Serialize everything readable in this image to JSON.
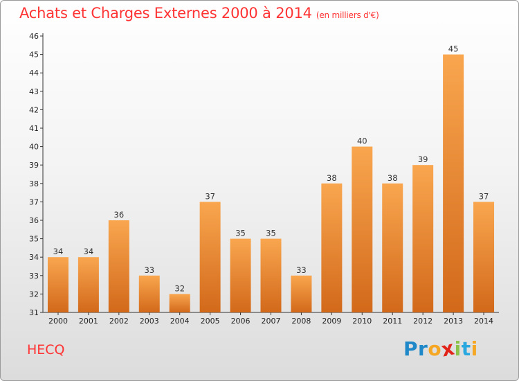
{
  "header": {
    "title": "Achats et Charges Externes 2000 à 2014",
    "unit": "(en milliers d'€)"
  },
  "footer": {
    "place": "HECQ",
    "logo_letters": [
      "P",
      "r",
      "o",
      "x",
      "i",
      "t",
      "i"
    ]
  },
  "colors": {
    "bar_light": "#f9a64f",
    "bar_dark": "#d2691a",
    "title": "#ff3333",
    "logo": [
      "#1e88c8",
      "#1e88c8",
      "#f5a623",
      "#e2231a",
      "#8bc34a",
      "#29a8e0",
      "#f5a623"
    ]
  },
  "chart_data": {
    "type": "bar",
    "title": "Achats et Charges Externes 2000 à 2014",
    "subtitle": "(en milliers d'€)",
    "categories": [
      "2000",
      "2001",
      "2002",
      "2003",
      "2004",
      "2005",
      "2006",
      "2007",
      "2008",
      "2009",
      "2010",
      "2011",
      "2012",
      "2013",
      "2014"
    ],
    "values": [
      34,
      34,
      36,
      33,
      32,
      37,
      35,
      35,
      33,
      38,
      40,
      38,
      39,
      45,
      37
    ],
    "ylim": [
      31,
      46
    ],
    "yticks": [
      31,
      32,
      33,
      34,
      35,
      36,
      37,
      38,
      39,
      40,
      41,
      42,
      43,
      44,
      45,
      46
    ],
    "grid": false,
    "legend": "none"
  }
}
